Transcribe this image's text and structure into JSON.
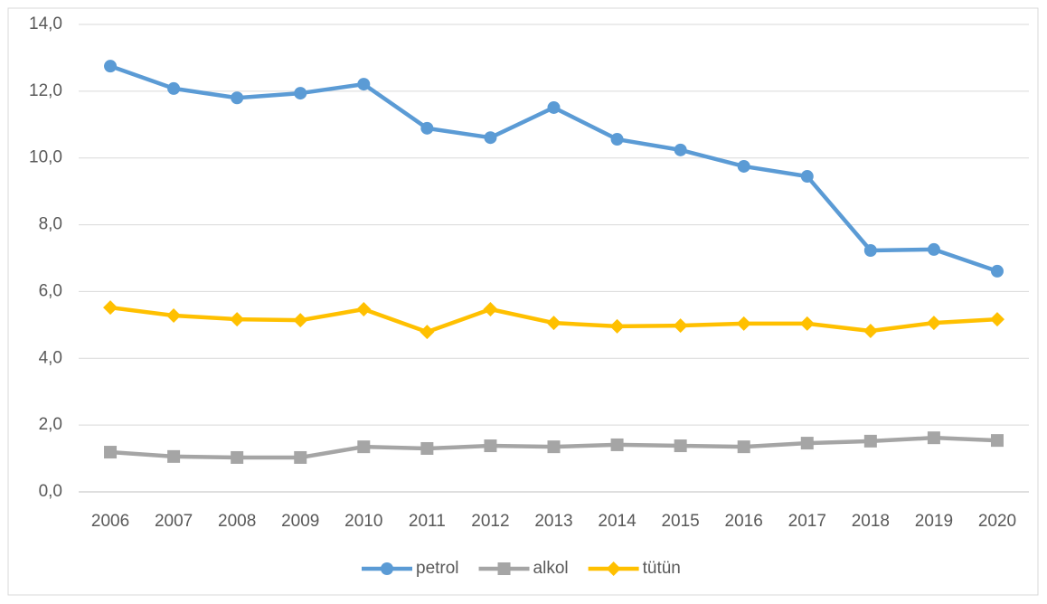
{
  "chart_data": {
    "type": "line",
    "categories": [
      "2006",
      "2007",
      "2008",
      "2009",
      "2010",
      "2011",
      "2012",
      "2013",
      "2014",
      "2015",
      "2016",
      "2017",
      "2018",
      "2019",
      "2020"
    ],
    "series": [
      {
        "name": "petrol",
        "color": "#5b9bd5",
        "marker": "circle",
        "values": [
          12.75,
          12.08,
          11.8,
          11.94,
          12.21,
          10.89,
          10.61,
          11.51,
          10.56,
          10.24,
          9.75,
          9.45,
          7.23,
          7.26,
          6.61
        ]
      },
      {
        "name": "alkol",
        "color": "#a5a5a5",
        "marker": "square",
        "values": [
          1.19,
          1.06,
          1.03,
          1.03,
          1.35,
          1.3,
          1.38,
          1.35,
          1.41,
          1.38,
          1.35,
          1.46,
          1.52,
          1.62,
          1.54
        ]
      },
      {
        "name": "tütün",
        "color": "#ffc000",
        "marker": "diamond",
        "values": [
          5.52,
          5.28,
          5.17,
          5.14,
          5.47,
          4.79,
          5.47,
          5.06,
          4.96,
          4.98,
          5.04,
          5.04,
          4.82,
          5.06,
          5.17
        ]
      }
    ],
    "ylim": [
      0,
      14
    ],
    "yticks": [
      {
        "value": 0,
        "label": "0,0"
      },
      {
        "value": 2,
        "label": "2,0"
      },
      {
        "value": 4,
        "label": "4,0"
      },
      {
        "value": 6,
        "label": "6,0"
      },
      {
        "value": 8,
        "label": "8,0"
      },
      {
        "value": 10,
        "label": "10,0"
      },
      {
        "value": 12,
        "label": "12,0"
      },
      {
        "value": 14,
        "label": "14,0"
      }
    ],
    "grid": true,
    "legend": "bottom"
  }
}
